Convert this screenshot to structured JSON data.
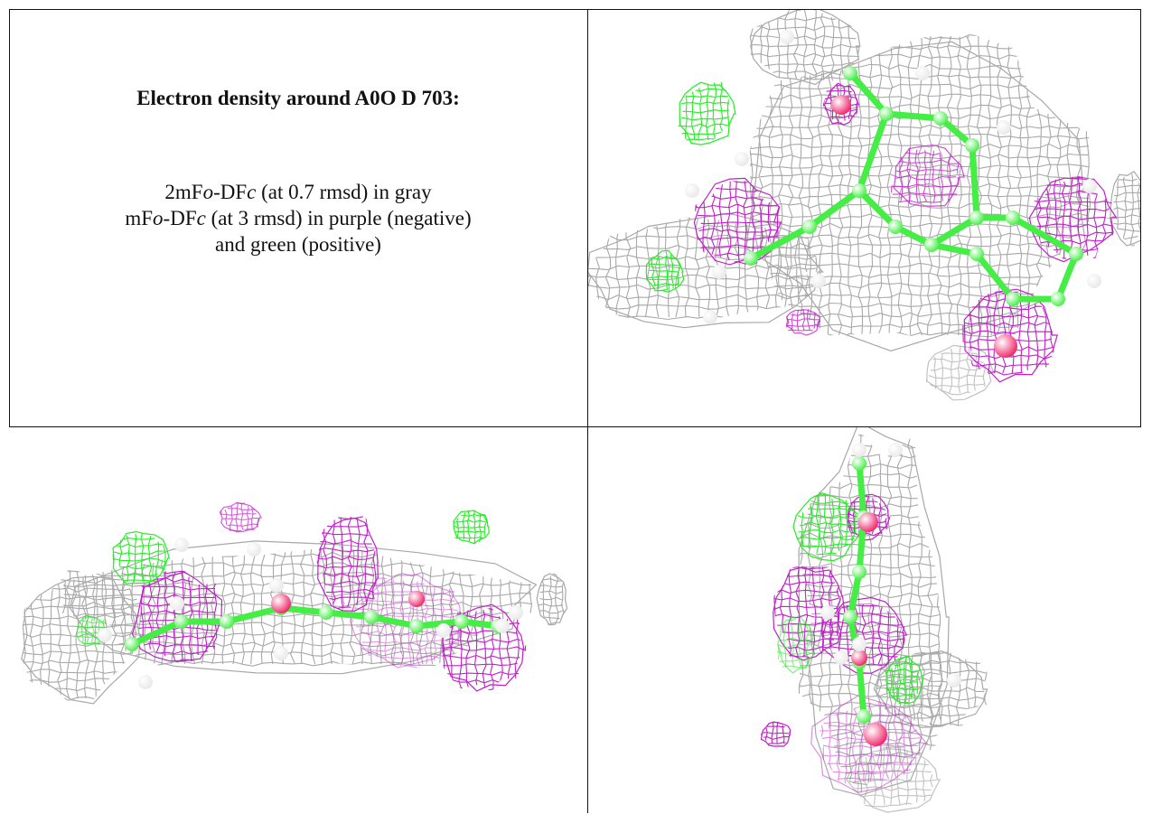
{
  "caption": {
    "title": "Electron density around A0O D 703:",
    "line1": "2mFo-DFc (at 0.7 rmsd) in gray",
    "line2": "mFo-DFc (at 3 rmsd) in purple (negative)",
    "line3": "and green (positive)"
  },
  "colors": {
    "map_2fofc": "#a8a8a8",
    "map_negative": "#c020c8",
    "map_positive": "#22ee22",
    "carbon": "#44ee44",
    "oxygen": "#ee2266",
    "hydrogen": "#e8e8e8"
  },
  "panels": [
    {
      "name": "view-top-right"
    },
    {
      "name": "view-bottom-left"
    },
    {
      "name": "view-bottom-right"
    }
  ]
}
